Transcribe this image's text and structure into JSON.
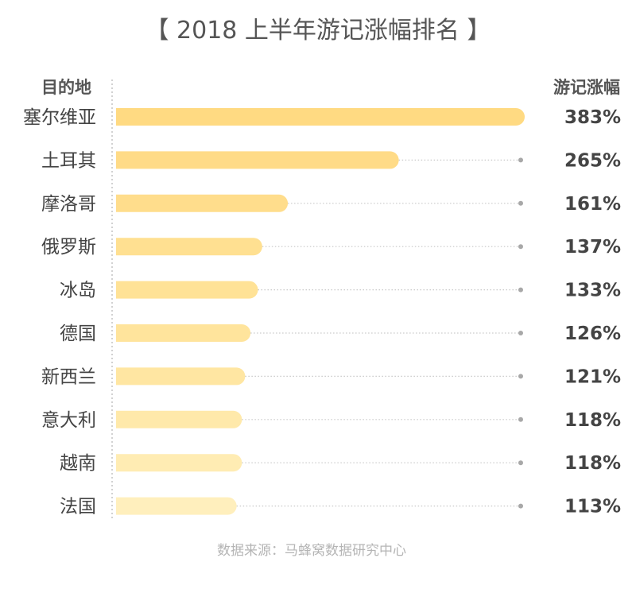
{
  "chart_data": {
    "type": "bar",
    "orientation": "horizontal",
    "title": "【 2018 上半年游记涨幅排名 】",
    "category_header": "目的地",
    "value_header": "游记涨幅",
    "unit": "%",
    "categories": [
      "塞尔维亚",
      "土耳其",
      "摩洛哥",
      "俄罗斯",
      "冰岛",
      "德国",
      "新西兰",
      "意大利",
      "越南",
      "法国"
    ],
    "values": [
      383,
      265,
      161,
      137,
      133,
      126,
      121,
      118,
      118,
      113
    ],
    "value_labels": [
      "383%",
      "265%",
      "161%",
      "137%",
      "133%",
      "126%",
      "121%",
      "118%",
      "118%",
      "113%"
    ],
    "bar_colors": [
      "#FFDA82",
      "#FFDB87",
      "#FFDD8C",
      "#FFE091",
      "#FFE296",
      "#FFE49C",
      "#FFE6A2",
      "#FFE9AA",
      "#FFECB3",
      "#FFEFBD"
    ],
    "xlim": [
      0,
      383
    ],
    "source": "数据来源：马蜂窝数据研究中心"
  }
}
